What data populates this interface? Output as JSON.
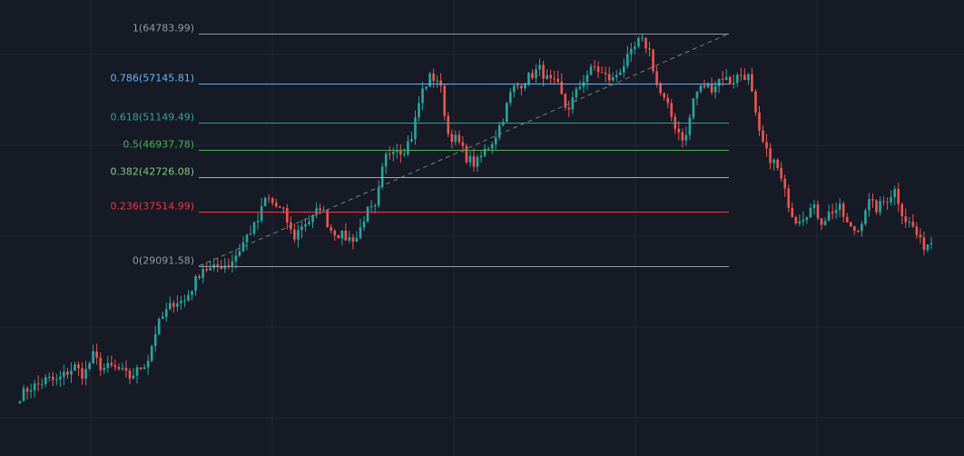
{
  "chart_data": {
    "type": "candlestick",
    "instrument": "",
    "title": "",
    "grid": true,
    "colors": {
      "background": "#161a25",
      "grid": "#242835",
      "up": "#26a69a",
      "down": "#ef5350",
      "trendline": "#787b86"
    },
    "fib_retracement": {
      "trend_start": {
        "price": 29091.58
      },
      "trend_end": {
        "price": 64783.99
      },
      "levels": [
        {
          "label": "1(64783.99)",
          "ratio": 1,
          "price": 64783.99,
          "color": "#9598a1"
        },
        {
          "label": "0.786(57145.81)",
          "ratio": 0.786,
          "price": 57145.81,
          "color": "#64b5f6"
        },
        {
          "label": "0.618(51149.49)",
          "ratio": 0.618,
          "price": 51149.49,
          "color": "#26a69a"
        },
        {
          "label": "0.5(46937.78)",
          "ratio": 0.5,
          "price": 46937.78,
          "color": "#4caf50"
        },
        {
          "label": "0.382(42726.08)",
          "ratio": 0.382,
          "price": 42726.08,
          "color": "#81c784"
        },
        {
          "label": "0.236(37514.99)",
          "ratio": 0.236,
          "price": 37514.99,
          "color": "#f23645"
        },
        {
          "label": "0(29091.58)",
          "ratio": 0,
          "price": 29091.58,
          "color": "#9598a1"
        }
      ]
    },
    "close_waypoints": [
      9200,
      10400,
      10900,
      11800,
      11400,
      12600,
      13700,
      12300,
      15400,
      13400,
      13600,
      13100,
      12000,
      13200,
      14600,
      19700,
      22000,
      23800,
      23600,
      26100,
      28900,
      28500,
      29200,
      29500,
      31400,
      34000,
      35700,
      39700,
      38400,
      37200,
      33300,
      35600,
      36200,
      38400,
      34800,
      34000,
      33300,
      33500,
      37500,
      37800,
      45600,
      47500,
      46700,
      49100,
      55600,
      58100,
      57700,
      49300,
      48400,
      45800,
      44600,
      46800,
      48600,
      51900,
      56300,
      57100,
      58300,
      59400,
      57500,
      56800,
      52900,
      55600,
      58200,
      59700,
      58400,
      57600,
      59600,
      61500,
      63800,
      62600,
      56300,
      53700,
      50300,
      48300,
      55500,
      56800,
      56500,
      58300,
      57200,
      58600,
      58100,
      49700,
      46200,
      44600,
      40100,
      36200,
      36900,
      38200,
      35900,
      37600,
      37900,
      34800,
      34600,
      39100,
      37900,
      39200,
      40800,
      36500,
      35100,
      32100,
      32900
    ]
  }
}
